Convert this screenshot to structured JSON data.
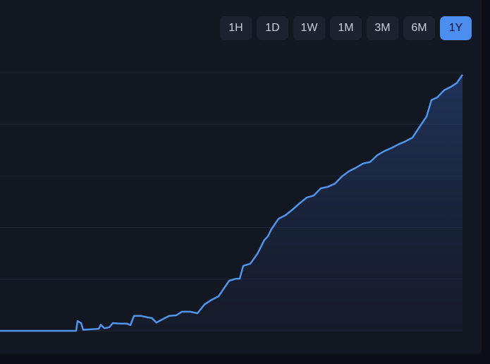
{
  "buttons": [
    {
      "label": "1H"
    },
    {
      "label": "1D"
    },
    {
      "label": "1W"
    },
    {
      "label": "1M"
    },
    {
      "label": "3M"
    },
    {
      "label": "6M"
    },
    {
      "label": "1Y"
    }
  ],
  "selected_button": 6,
  "chart_data": {
    "type": "area",
    "color": "#4f95ec",
    "grid": true,
    "xlim": [
      0,
      656
    ],
    "ylim": [
      0,
      5
    ],
    "yticks": [
      0,
      1,
      2,
      3,
      4,
      5
    ],
    "x": [
      0,
      108,
      110,
      115,
      118,
      130,
      140,
      143,
      148,
      155,
      160,
      170,
      180,
      185,
      190,
      200,
      210,
      215,
      222,
      230,
      240,
      250,
      258,
      270,
      280,
      290,
      300,
      310,
      320,
      325,
      335,
      340,
      345,
      355,
      365,
      375,
      380,
      385,
      395,
      405,
      415,
      425,
      435,
      445,
      455,
      465,
      475,
      485,
      495,
      505,
      515,
      525,
      535,
      545,
      555,
      565,
      575,
      585,
      595,
      605,
      612,
      620,
      630,
      640,
      648,
      656
    ],
    "values": [
      0,
      0,
      0.19,
      0.15,
      0.02,
      0.03,
      0.04,
      0.12,
      0.05,
      0.07,
      0.15,
      0.14,
      0.14,
      0.11,
      0.29,
      0.29,
      0.26,
      0.25,
      0.16,
      0.22,
      0.29,
      0.3,
      0.37,
      0.37,
      0.34,
      0.51,
      0.6,
      0.67,
      0.87,
      0.97,
      1.01,
      1.01,
      1.26,
      1.3,
      1.49,
      1.76,
      1.83,
      1.97,
      2.17,
      2.24,
      2.35,
      2.47,
      2.58,
      2.62,
      2.76,
      2.79,
      2.85,
      2.99,
      3.09,
      3.16,
      3.24,
      3.27,
      3.4,
      3.48,
      3.54,
      3.61,
      3.67,
      3.74,
      3.95,
      4.15,
      4.47,
      4.52,
      4.66,
      4.73,
      4.8,
      4.96
    ]
  }
}
